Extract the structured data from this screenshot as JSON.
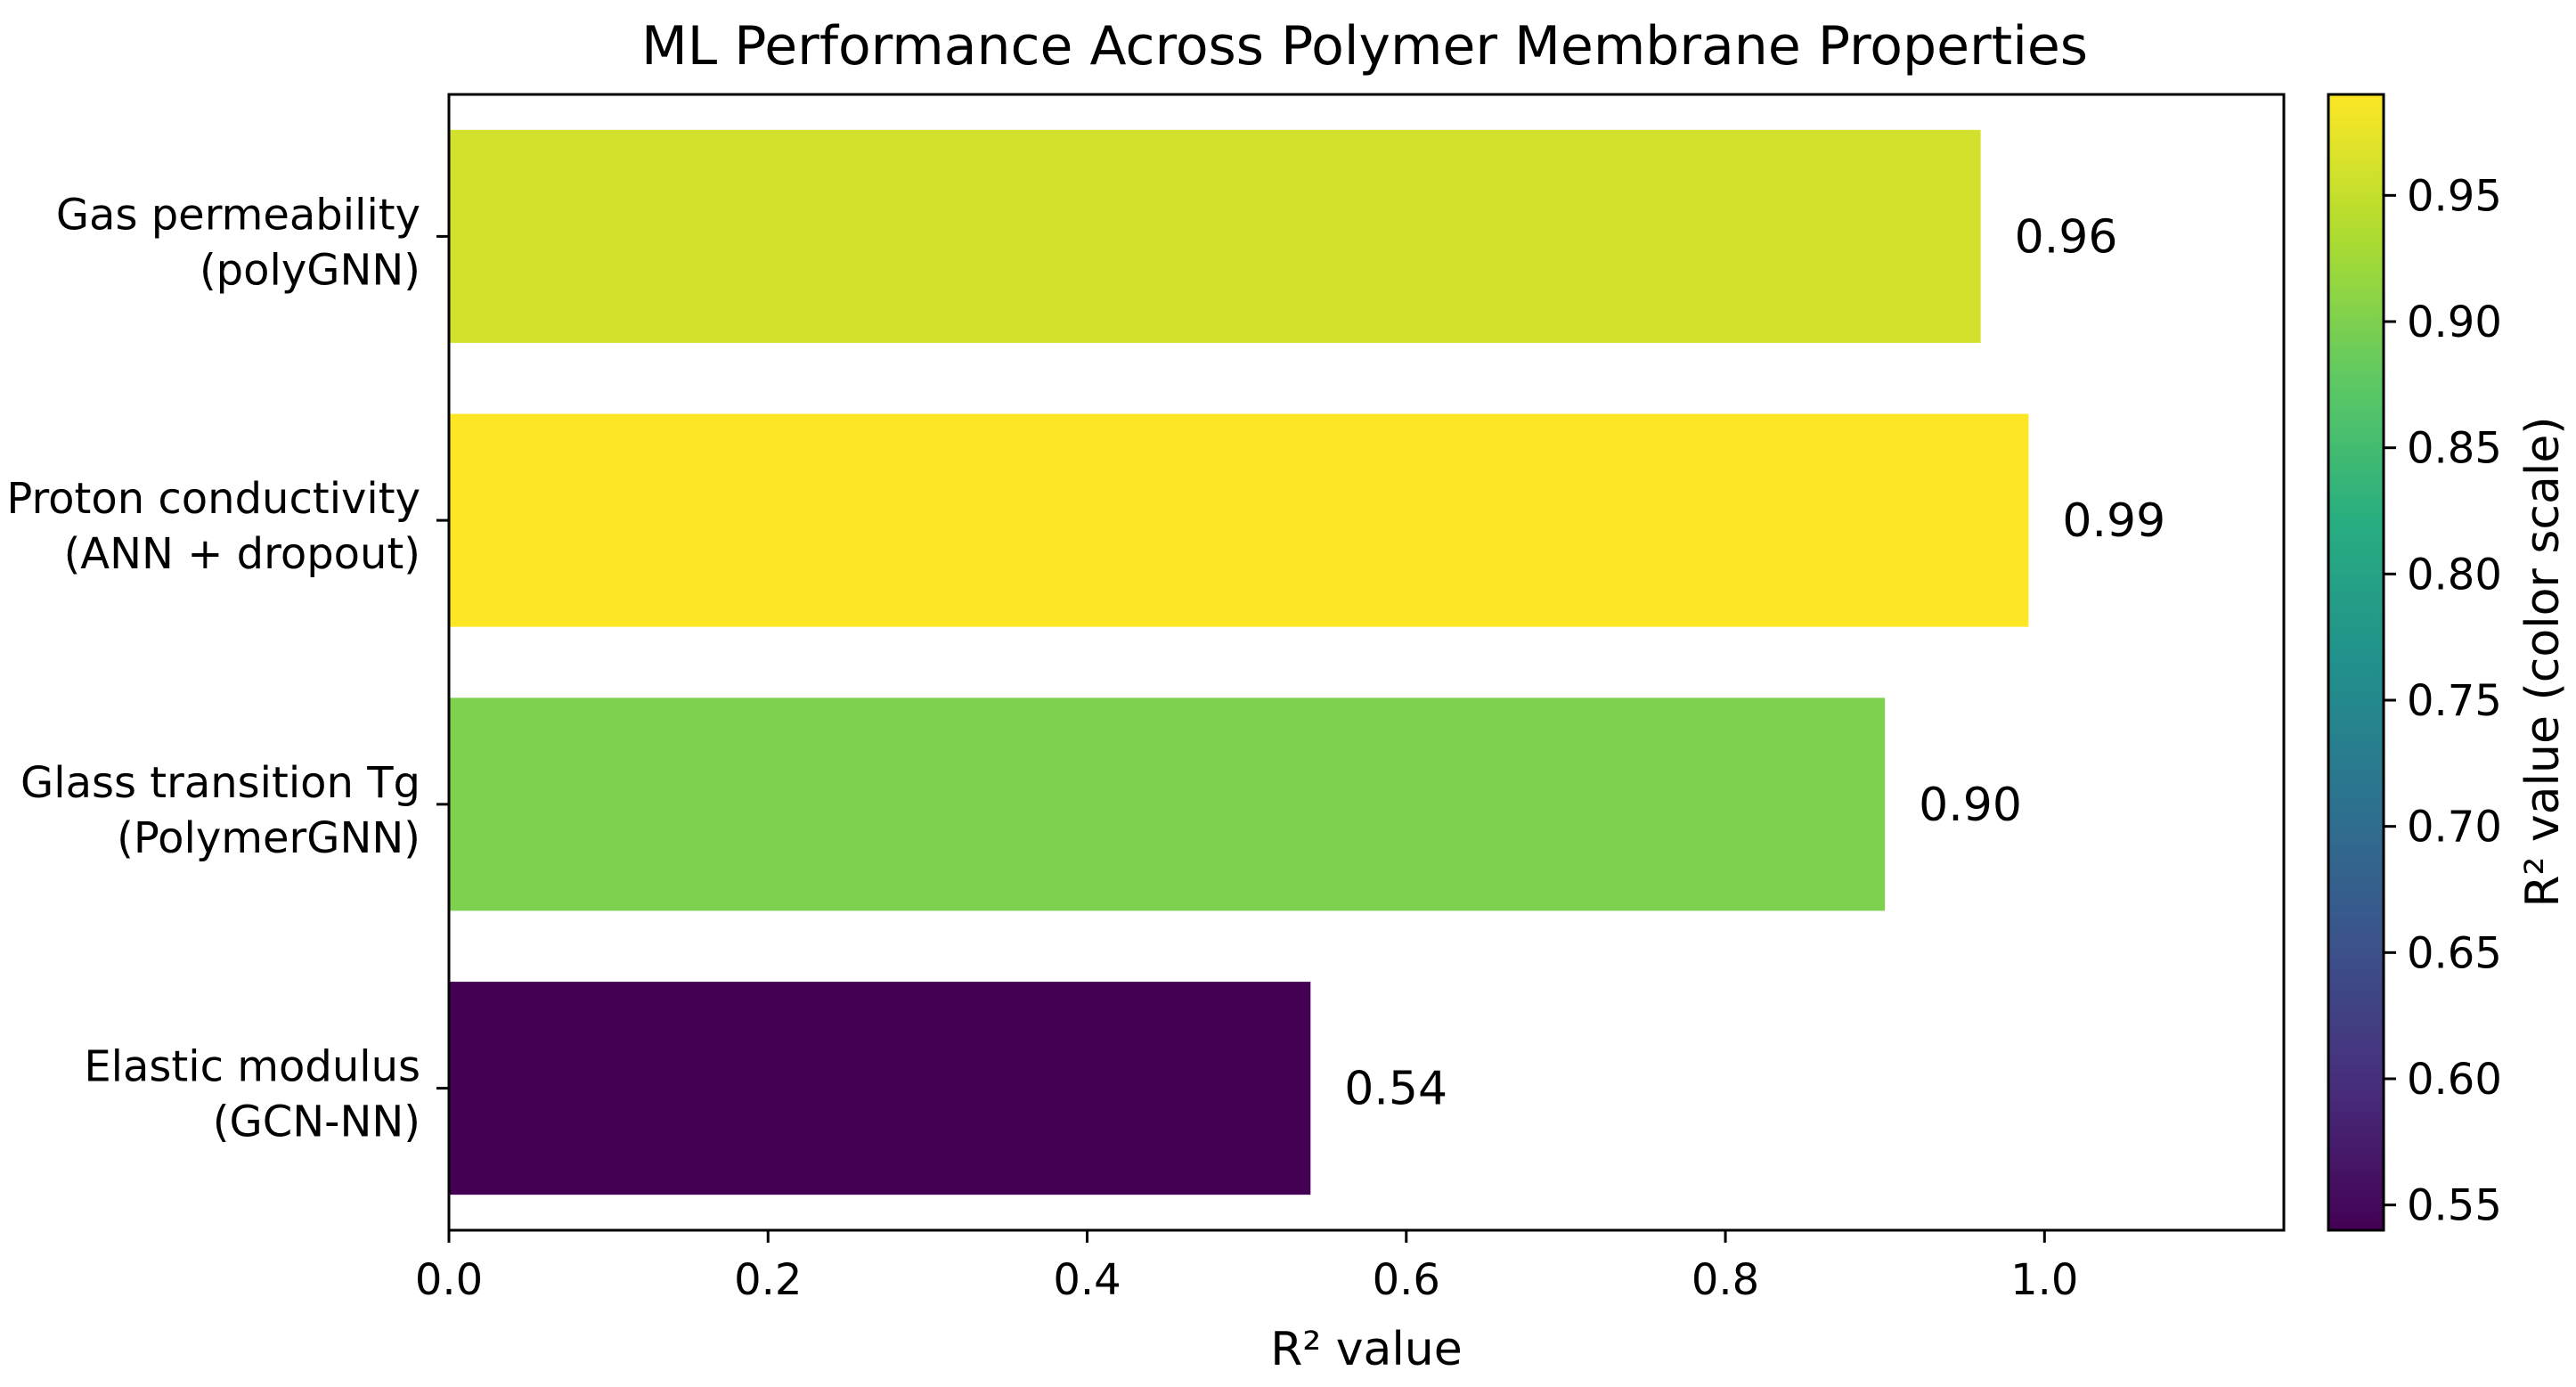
{
  "chart_data": {
    "type": "bar",
    "orientation": "horizontal",
    "title": "ML Performance Across Polymer Membrane Properties",
    "xlabel": "R² value",
    "ylabel": "",
    "xlim": [
      0,
      1.15
    ],
    "xticks": [
      "0.0",
      "0.2",
      "0.4",
      "0.6",
      "0.8",
      "1.0"
    ],
    "grid": false,
    "categories": [
      {
        "line1": "Gas permeability",
        "line2": "(polyGNN)"
      },
      {
        "line1": "Proton conductivity",
        "line2": "(ANN + dropout)"
      },
      {
        "line1": "Glass transition Tg",
        "line2": "(PolymerGNN)"
      },
      {
        "line1": "Elastic modulus",
        "line2": "(GCN-NN)"
      }
    ],
    "values": [
      0.96,
      0.99,
      0.9,
      0.54
    ],
    "value_labels": [
      "0.96",
      "0.99",
      "0.90",
      "0.54"
    ],
    "colormap": "viridis",
    "colorbar": {
      "label": "R² value (color scale)",
      "range": [
        0.54,
        0.99
      ],
      "ticks": [
        "0.55",
        "0.60",
        "0.65",
        "0.70",
        "0.75",
        "0.80",
        "0.85",
        "0.90",
        "0.95"
      ]
    }
  }
}
